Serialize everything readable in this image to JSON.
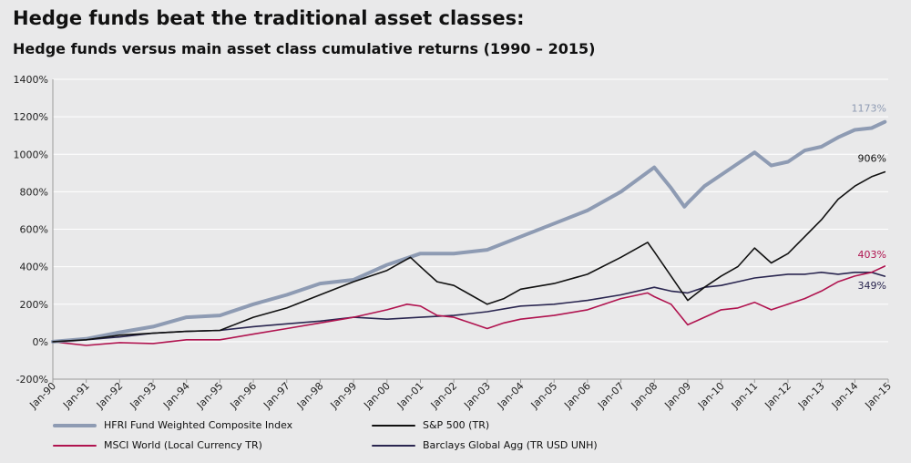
{
  "chart_data": {
    "type": "line",
    "title": "Hedge funds beat the traditional asset classes:",
    "subtitle": "Hedge funds versus main asset class cumulative returns (1990 – 2015)",
    "xlabel": "",
    "ylabel": "",
    "x_tick_labels": [
      "Jan-90",
      "Jan-91",
      "Jan-92",
      "Jan-93",
      "Jan-94",
      "Jan-95",
      "Jan-96",
      "Jan-97",
      "Jan-98",
      "Jan-99",
      "Jan-00",
      "Jan-01",
      "Jan-02",
      "Jan-03",
      "Jan-04",
      "Jan-05",
      "Jan-06",
      "Jan-07",
      "Jan-08",
      "Jan-09",
      "Jan-10",
      "Jan-11",
      "Jan-12",
      "Jan-13",
      "Jan-14",
      "Jan-15"
    ],
    "y_tick_labels": [
      "-200%",
      "0%",
      "200%",
      "400%",
      "600%",
      "800%",
      "1000%",
      "1200%",
      "1400%"
    ],
    "ylim": [
      -200,
      1400
    ],
    "xlim": [
      1990,
      2015
    ],
    "y_unit": "%",
    "grid": true,
    "legend_position": "bottom",
    "series": [
      {
        "name": "HFRI Fund Weighted Composite Index",
        "color": "#8e9bb3",
        "end_label": "1173%",
        "points": [
          [
            1990,
            0
          ],
          [
            1991,
            15
          ],
          [
            1992,
            50
          ],
          [
            1993,
            80
          ],
          [
            1994,
            130
          ],
          [
            1995,
            140
          ],
          [
            1996,
            200
          ],
          [
            1997,
            250
          ],
          [
            1998,
            310
          ],
          [
            1999,
            330
          ],
          [
            2000,
            410
          ],
          [
            2001,
            470
          ],
          [
            2002,
            470
          ],
          [
            2003,
            490
          ],
          [
            2004,
            560
          ],
          [
            2005,
            630
          ],
          [
            2006,
            700
          ],
          [
            2007,
            800
          ],
          [
            2008,
            930
          ],
          [
            2008.5,
            820
          ],
          [
            2008.9,
            720
          ],
          [
            2009,
            740
          ],
          [
            2009.5,
            830
          ],
          [
            2010,
            890
          ],
          [
            2010.5,
            950
          ],
          [
            2011,
            1010
          ],
          [
            2011.5,
            940
          ],
          [
            2012,
            960
          ],
          [
            2012.5,
            1020
          ],
          [
            2013,
            1040
          ],
          [
            2013.5,
            1090
          ],
          [
            2014,
            1130
          ],
          [
            2014.5,
            1140
          ],
          [
            2014.9,
            1173
          ]
        ]
      },
      {
        "name": "S&P 500 (TR)",
        "color": "#111111",
        "end_label": "906%",
        "points": [
          [
            1990,
            0
          ],
          [
            1991,
            10
          ],
          [
            1992,
            35
          ],
          [
            1993,
            45
          ],
          [
            1994,
            55
          ],
          [
            1995,
            60
          ],
          [
            1996,
            130
          ],
          [
            1997,
            180
          ],
          [
            1998,
            250
          ],
          [
            1999,
            320
          ],
          [
            2000,
            380
          ],
          [
            2000.7,
            450
          ],
          [
            2001,
            400
          ],
          [
            2001.5,
            320
          ],
          [
            2002,
            300
          ],
          [
            2002.5,
            250
          ],
          [
            2003,
            200
          ],
          [
            2003.5,
            230
          ],
          [
            2004,
            280
          ],
          [
            2005,
            310
          ],
          [
            2006,
            360
          ],
          [
            2007,
            450
          ],
          [
            2007.8,
            530
          ],
          [
            2008,
            480
          ],
          [
            2008.5,
            350
          ],
          [
            2009,
            220
          ],
          [
            2009.5,
            290
          ],
          [
            2010,
            350
          ],
          [
            2010.5,
            400
          ],
          [
            2011,
            500
          ],
          [
            2011.5,
            420
          ],
          [
            2012,
            470
          ],
          [
            2012.5,
            560
          ],
          [
            2013,
            650
          ],
          [
            2013.5,
            760
          ],
          [
            2014,
            830
          ],
          [
            2014.5,
            880
          ],
          [
            2014.9,
            906
          ]
        ]
      },
      {
        "name": "MSCI World (Local Currency TR)",
        "color": "#b0134f",
        "end_label": "403%",
        "points": [
          [
            1990,
            0
          ],
          [
            1991,
            -20
          ],
          [
            1992,
            -5
          ],
          [
            1993,
            -10
          ],
          [
            1994,
            10
          ],
          [
            1995,
            10
          ],
          [
            1996,
            40
          ],
          [
            1997,
            70
          ],
          [
            1998,
            100
          ],
          [
            1999,
            130
          ],
          [
            2000,
            170
          ],
          [
            2000.6,
            200
          ],
          [
            2001,
            190
          ],
          [
            2001.5,
            140
          ],
          [
            2002,
            130
          ],
          [
            2002.5,
            100
          ],
          [
            2003,
            70
          ],
          [
            2003.5,
            100
          ],
          [
            2004,
            120
          ],
          [
            2005,
            140
          ],
          [
            2006,
            170
          ],
          [
            2007,
            230
          ],
          [
            2007.8,
            260
          ],
          [
            2008,
            240
          ],
          [
            2008.5,
            200
          ],
          [
            2009,
            90
          ],
          [
            2009.5,
            130
          ],
          [
            2010,
            170
          ],
          [
            2010.5,
            180
          ],
          [
            2011,
            210
          ],
          [
            2011.5,
            170
          ],
          [
            2012,
            200
          ],
          [
            2012.5,
            230
          ],
          [
            2013,
            270
          ],
          [
            2013.5,
            320
          ],
          [
            2014,
            350
          ],
          [
            2014.5,
            370
          ],
          [
            2014.9,
            403
          ]
        ]
      },
      {
        "name": "Barclays Global Agg (TR USD UNH)",
        "color": "#2a2650",
        "end_label": "349%",
        "points": [
          [
            1990,
            0
          ],
          [
            1991,
            10
          ],
          [
            1992,
            25
          ],
          [
            1993,
            45
          ],
          [
            1994,
            55
          ],
          [
            1995,
            60
          ],
          [
            1996,
            80
          ],
          [
            1997,
            95
          ],
          [
            1998,
            110
          ],
          [
            1999,
            130
          ],
          [
            2000,
            120
          ],
          [
            2001,
            130
          ],
          [
            2002,
            140
          ],
          [
            2003,
            160
          ],
          [
            2004,
            190
          ],
          [
            2005,
            200
          ],
          [
            2006,
            220
          ],
          [
            2007,
            250
          ],
          [
            2008,
            290
          ],
          [
            2008.5,
            270
          ],
          [
            2009,
            260
          ],
          [
            2009.5,
            290
          ],
          [
            2010,
            300
          ],
          [
            2010.5,
            320
          ],
          [
            2011,
            340
          ],
          [
            2011.5,
            350
          ],
          [
            2012,
            360
          ],
          [
            2012.5,
            360
          ],
          [
            2013,
            370
          ],
          [
            2013.5,
            360
          ],
          [
            2014,
            370
          ],
          [
            2014.5,
            370
          ],
          [
            2014.9,
            349
          ]
        ]
      }
    ]
  }
}
